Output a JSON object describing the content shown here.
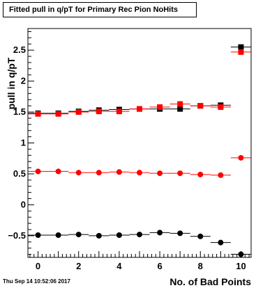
{
  "chart_data": {
    "type": "scatter",
    "title": "Fitted pull in q/pT for Primary Rec Pion NoHits",
    "xlabel": "No. of Bad Points",
    "ylabel": "pull in q/pT",
    "xlim": [
      -0.5,
      10.5
    ],
    "ylim": [
      -0.85,
      2.85
    ],
    "x_ticks": [
      0,
      2,
      4,
      6,
      8,
      10
    ],
    "y_ticks": [
      -0.5,
      0,
      0.5,
      1,
      1.5,
      2,
      2.5
    ],
    "y_tick_labels": [
      "−0.5",
      "0",
      "0.5",
      "1",
      "1.5",
      "2",
      "2.5"
    ],
    "grid": false,
    "x": [
      0,
      1,
      2,
      3,
      4,
      5,
      6,
      7,
      8,
      9,
      10
    ],
    "series": [
      {
        "color": "#000000",
        "marker": "square",
        "values": [
          1.48,
          1.48,
          1.51,
          1.53,
          1.54,
          1.55,
          1.55,
          1.55,
          1.6,
          1.61,
          2.55
        ]
      },
      {
        "color": "#ff0000",
        "marker": "square",
        "values": [
          1.47,
          1.47,
          1.5,
          1.51,
          1.51,
          1.55,
          1.58,
          1.63,
          1.6,
          1.58,
          2.47
        ]
      },
      {
        "color": "#ff0000",
        "marker": "circle",
        "values": [
          0.54,
          0.54,
          0.52,
          0.52,
          0.53,
          0.52,
          0.51,
          0.51,
          0.49,
          0.48,
          0.76
        ]
      },
      {
        "color": "#000000",
        "marker": "circle",
        "values": [
          -0.49,
          -0.49,
          -0.48,
          -0.5,
          -0.49,
          -0.48,
          -0.45,
          -0.46,
          -0.51,
          -0.61,
          -0.8
        ]
      }
    ]
  },
  "footer": {
    "timestamp": "Thu Sep 14 10:52:06 2017"
  }
}
